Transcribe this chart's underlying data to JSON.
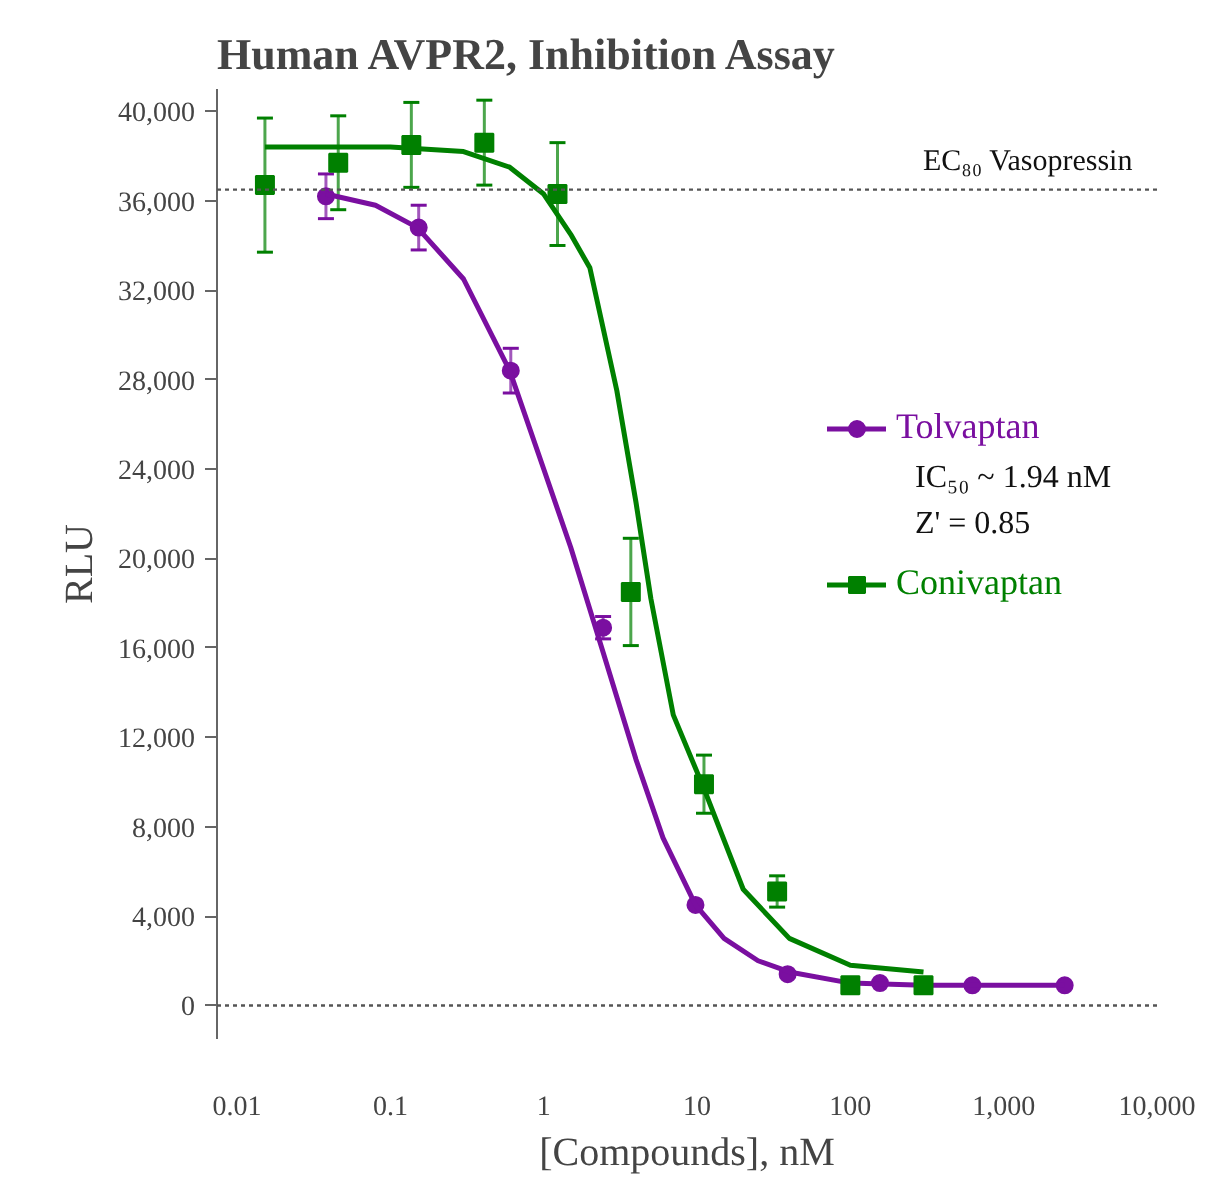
{
  "chart_data": {
    "type": "scatter",
    "title": "Human AVPR2, Inhibition Assay",
    "xlabel": "[Compounds], nM",
    "ylabel": "RLU",
    "log": "x",
    "xlim": [
      0.0074,
      10000
    ],
    "ylim": [
      -1500,
      41000
    ],
    "xticks": [
      0.01,
      0.1,
      1,
      10,
      100,
      {
        "value": 1000,
        "label": "1,000"
      },
      {
        "value": 10000,
        "label": "10,000"
      }
    ],
    "yticks": [
      0,
      {
        "value": 4000,
        "label": "4,000"
      },
      {
        "value": 8000,
        "label": "8,000"
      },
      {
        "value": 12000,
        "label": "12,000"
      },
      {
        "value": 16000,
        "label": "16,000"
      },
      {
        "value": 20000,
        "label": "20,000"
      },
      {
        "value": 24000,
        "label": "24,000"
      },
      {
        "value": 28000,
        "label": "28,000"
      },
      {
        "value": 32000,
        "label": "32,000"
      },
      {
        "value": 36000,
        "label": "36,000"
      },
      {
        "value": 40000,
        "label": "40,000"
      }
    ],
    "grid": false,
    "legend": "right",
    "series": [
      {
        "name": "Tolvaptan",
        "marker": "circle",
        "color": "#7a0fa0",
        "x": [
          0.038,
          0.153,
          0.61,
          2.44,
          9.77,
          39,
          156,
          625,
          2500
        ],
        "values": [
          36200,
          34800,
          28400,
          16900,
          4500,
          1400,
          1000,
          900,
          900
        ],
        "errors": [
          1000,
          1000,
          1000,
          500,
          null,
          null,
          null,
          null,
          null
        ]
      },
      {
        "type": "line",
        "color": "#7a0fa0",
        "x": [
          0.038,
          0.08,
          0.15,
          0.3,
          0.6,
          1.0,
          1.5,
          2.44,
          4,
          6,
          9.77,
          15,
          25,
          40,
          100,
          300,
          1000,
          2500
        ],
        "values": [
          36300,
          35800,
          34800,
          32500,
          28400,
          24000,
          20500,
          15800,
          11000,
          7500,
          4500,
          3000,
          2000,
          1500,
          1000,
          900,
          900,
          900
        ]
      },
      {
        "name": "Conivaptan",
        "marker": "square",
        "color": "#008000",
        "x": [
          0.0152,
          0.0457,
          0.137,
          0.41,
          1.23,
          3.7,
          11.1,
          33.3,
          100,
          300
        ],
        "values": [
          36700,
          37700,
          38500,
          38600,
          36300,
          18500,
          9900,
          5100,
          900,
          900
        ],
        "errors": [
          3000,
          2100,
          1900,
          1900,
          2300,
          2400,
          1300,
          700,
          null,
          null
        ]
      },
      {
        "type": "line",
        "color": "#008000",
        "x": [
          0.0152,
          0.1,
          0.3,
          0.6,
          1.0,
          1.5,
          2,
          3,
          4,
          5,
          7,
          11.1,
          20,
          40,
          100,
          300
        ],
        "values": [
          38400,
          38400,
          38200,
          37500,
          36300,
          34500,
          33000,
          27500,
          22500,
          18200,
          13000,
          9700,
          5200,
          3000,
          1800,
          1500
        ]
      }
    ],
    "ref_lines": [
      {
        "axis": "y",
        "value": 36500,
        "label": "EC₈₀ Vasopressin",
        "color": "#555555",
        "line_style": "dotted"
      },
      {
        "axis": "y",
        "value": 0,
        "color": "#555555",
        "line_style": "dotted"
      }
    ],
    "annotations": [
      "IC₅₀ ~ 1.94  nM",
      "Z' = 0.85"
    ]
  }
}
